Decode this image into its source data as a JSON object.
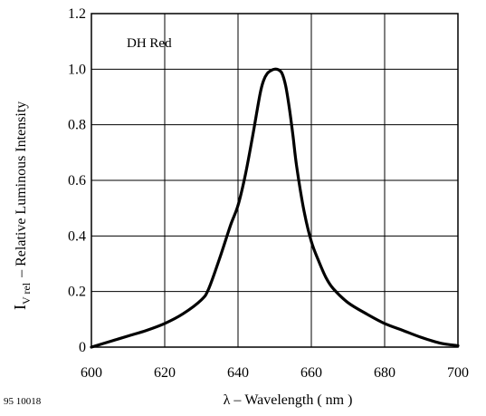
{
  "figure_id": "95 10018",
  "chart_data": {
    "type": "line",
    "title": "",
    "annotation": "DH Red",
    "xlabel": "λ – Wavelength ( nm )",
    "ylabel": {
      "symbol": "I",
      "subscript": "V rel",
      "text": "– Relative Luminous Intensity"
    },
    "xlim": [
      600,
      700
    ],
    "ylim": [
      0,
      1.2
    ],
    "x_ticks": [
      "600",
      "620",
      "640",
      "660",
      "680",
      "700"
    ],
    "y_ticks": [
      "0",
      "0.2",
      "0.4",
      "0.6",
      "0.8",
      "1.0",
      "1.2"
    ],
    "grid": true,
    "series": [
      {
        "name": "",
        "x": [
          600,
          605,
          610,
          615,
          620,
          625,
          630,
          632,
          635,
          638,
          640,
          642,
          644,
          646,
          647,
          648,
          649,
          650,
          651,
          652,
          653,
          654,
          655,
          656,
          658,
          660,
          662,
          664,
          666,
          670,
          675,
          680,
          685,
          690,
          695,
          700
        ],
        "y": [
          0.0,
          0.02,
          0.04,
          0.06,
          0.085,
          0.12,
          0.17,
          0.21,
          0.32,
          0.44,
          0.51,
          0.62,
          0.76,
          0.91,
          0.96,
          0.985,
          0.995,
          1.0,
          0.998,
          0.985,
          0.94,
          0.86,
          0.76,
          0.65,
          0.49,
          0.38,
          0.31,
          0.25,
          0.21,
          0.16,
          0.12,
          0.085,
          0.06,
          0.035,
          0.015,
          0.005
        ]
      }
    ]
  }
}
